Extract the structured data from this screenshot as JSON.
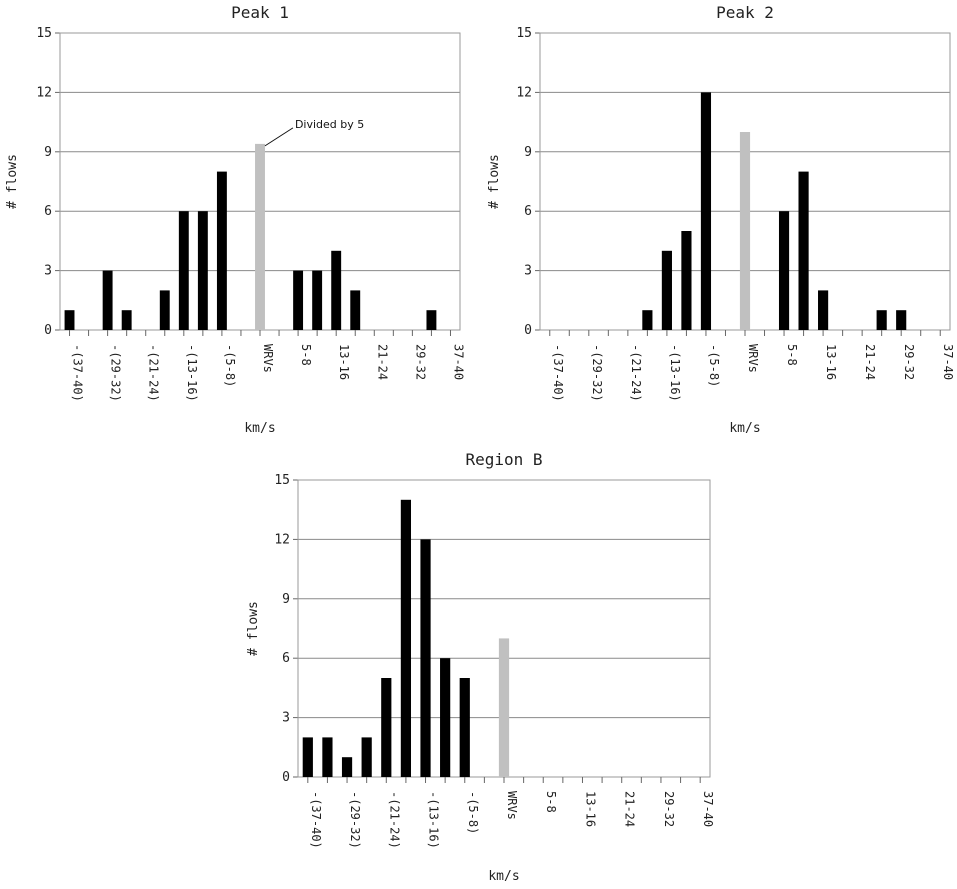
{
  "chart_data": [
    {
      "type": "bar",
      "title": "Peak 1",
      "xlabel": "km/s",
      "ylabel": "# flows",
      "ylim": [
        0,
        15
      ],
      "yticks": [
        0,
        3,
        6,
        9,
        12,
        15
      ],
      "grid": true,
      "categories": [
        "-(37-40)",
        "",
        "-(29-32)",
        "",
        "-(21-24)",
        "",
        "-(13-16)",
        "",
        "-(5-8)",
        "",
        "WRVs",
        "",
        "5-8",
        "",
        "13-16",
        "",
        "21-24",
        "",
        "29-32",
        "",
        "37-40"
      ],
      "values": [
        1,
        0,
        3,
        1,
        0,
        2,
        6,
        6,
        8,
        0,
        9.4,
        0,
        3,
        3,
        4,
        2,
        0,
        0,
        0,
        1,
        0
      ],
      "highlight_index": 10,
      "colors": {
        "bar": "#000000",
        "highlight": "#c0c0c0"
      },
      "annotation": "Divided by 5"
    },
    {
      "type": "bar",
      "title": "Peak 2",
      "xlabel": "km/s",
      "ylabel": "# flows",
      "ylim": [
        0,
        15
      ],
      "yticks": [
        0,
        3,
        6,
        9,
        12,
        15
      ],
      "grid": true,
      "categories": [
        "-(37-40)",
        "",
        "-(29-32)",
        "",
        "-(21-24)",
        "",
        "-(13-16)",
        "",
        "-(5-8)",
        "",
        "WRVs",
        "",
        "5-8",
        "",
        "13-16",
        "",
        "21-24",
        "",
        "29-32",
        "",
        "37-40"
      ],
      "values": [
        0,
        0,
        0,
        0,
        0,
        1,
        4,
        5,
        12,
        0,
        10,
        0,
        6,
        8,
        2,
        0,
        0,
        1,
        1,
        0,
        0
      ],
      "highlight_index": 10,
      "colors": {
        "bar": "#000000",
        "highlight": "#c0c0c0"
      }
    },
    {
      "type": "bar",
      "title": "Region B",
      "xlabel": "km/s",
      "ylabel": "# flows",
      "ylim": [
        0,
        15
      ],
      "yticks": [
        0,
        3,
        6,
        9,
        12,
        15
      ],
      "grid": true,
      "categories": [
        "-(37-40)",
        "",
        "-(29-32)",
        "",
        "-(21-24)",
        "",
        "-(13-16)",
        "",
        "-(5-8)",
        "",
        "WRVs",
        "",
        "5-8",
        "",
        "13-16",
        "",
        "21-24",
        "",
        "29-32",
        "",
        "37-40"
      ],
      "values": [
        2,
        2,
        1,
        2,
        5,
        14,
        12,
        6,
        5,
        0,
        7,
        0,
        0,
        0,
        0,
        0,
        0,
        0,
        0,
        0,
        0
      ],
      "highlight_index": 10,
      "colors": {
        "bar": "#000000",
        "highlight": "#c0c0c0"
      }
    }
  ]
}
